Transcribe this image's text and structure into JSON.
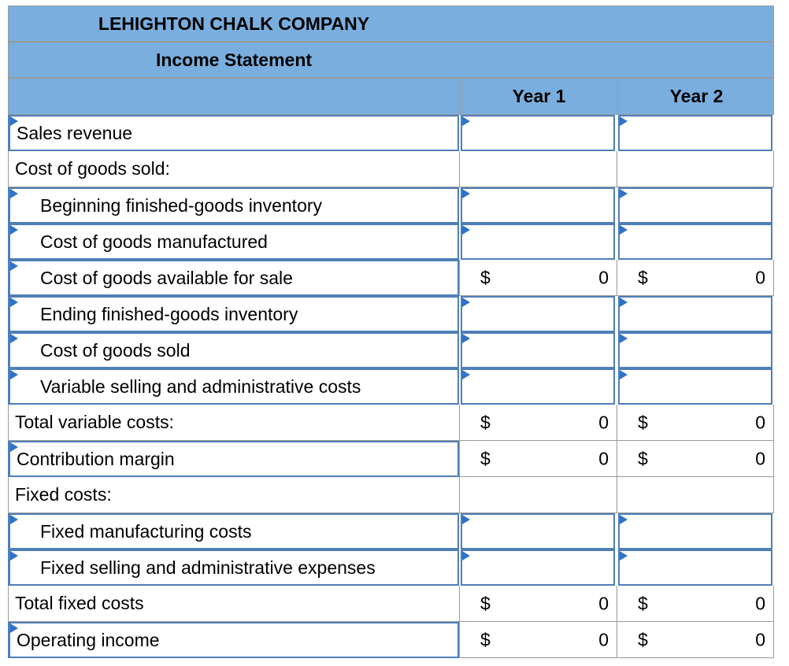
{
  "company": "LEHIGHTON CHALK COMPANY",
  "statement": "Income Statement",
  "columns": [
    "Year 1",
    "Year 2"
  ],
  "currency_symbol": "$",
  "rows": [
    {
      "label": "Sales revenue",
      "year1": "",
      "year2": ""
    },
    {
      "label": "Cost of goods sold:",
      "year1": "",
      "year2": ""
    },
    {
      "label": "Beginning finished-goods inventory",
      "year1": "",
      "year2": ""
    },
    {
      "label": "Cost of goods manufactured",
      "year1": "",
      "year2": ""
    },
    {
      "label": "Cost of goods available for sale",
      "year1": "0",
      "year2": "0"
    },
    {
      "label": "Ending finished-goods inventory",
      "year1": "",
      "year2": ""
    },
    {
      "label": "Cost of goods sold",
      "year1": "",
      "year2": ""
    },
    {
      "label": "Variable selling and administrative costs",
      "year1": "",
      "year2": ""
    },
    {
      "label": "Total variable costs:",
      "year1": "0",
      "year2": "0"
    },
    {
      "label": "Contribution margin",
      "year1": "0",
      "year2": "0"
    },
    {
      "label": "Fixed costs:",
      "year1": "",
      "year2": ""
    },
    {
      "label": "Fixed manufacturing costs",
      "year1": "",
      "year2": ""
    },
    {
      "label": "Fixed selling and administrative expenses",
      "year1": "",
      "year2": ""
    },
    {
      "label": "Total fixed costs",
      "year1": "0",
      "year2": "0"
    },
    {
      "label": "Operating income",
      "year1": "0",
      "year2": "0"
    }
  ]
}
